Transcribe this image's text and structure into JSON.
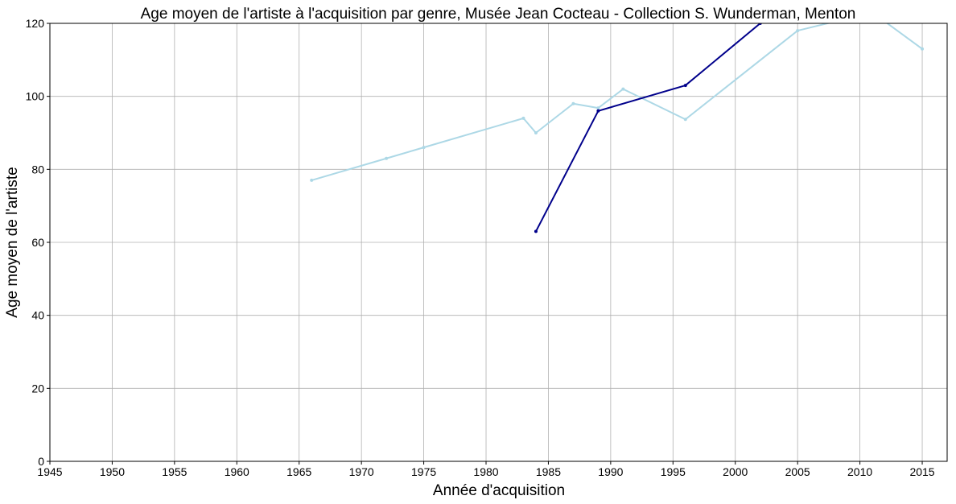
{
  "chart_data": {
    "type": "line",
    "title": "Age moyen de l'artiste à l'acquisition par genre, Musée Jean Cocteau - Collection S. Wunderman, Menton",
    "xlabel": "Année d'acquisition",
    "ylabel": "Age moyen de l'artiste",
    "xlim": [
      1945,
      2017
    ],
    "ylim": [
      0,
      120
    ],
    "xticks": [
      1945,
      1950,
      1955,
      1960,
      1965,
      1970,
      1975,
      1980,
      1985,
      1990,
      1995,
      2000,
      2005,
      2010,
      2015
    ],
    "yticks": [
      0,
      20,
      40,
      60,
      80,
      100,
      120
    ],
    "grid": true,
    "series": [
      {
        "color": "#add8e6",
        "points": [
          [
            1966,
            77
          ],
          [
            1972,
            83
          ],
          [
            1975,
            86
          ],
          [
            1983,
            94
          ],
          [
            1984,
            90
          ],
          [
            1987,
            98
          ],
          [
            1989,
            96.8
          ],
          [
            1991,
            102
          ],
          [
            1996,
            93.7
          ],
          [
            2005,
            118
          ],
          [
            2008,
            120.5
          ],
          [
            2011,
            123
          ],
          [
            2015,
            113
          ]
        ]
      },
      {
        "color": "#00008b",
        "points": [
          [
            1984,
            63
          ],
          [
            1989,
            96
          ],
          [
            1996,
            103
          ],
          [
            2002,
            120
          ],
          [
            2004,
            126
          ]
        ]
      }
    ]
  }
}
